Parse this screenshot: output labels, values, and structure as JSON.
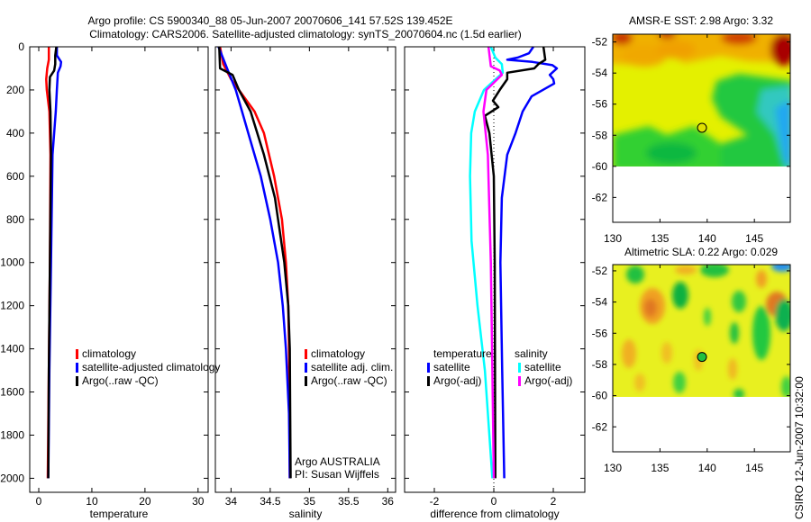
{
  "title": {
    "line1": "Argo profile: CS 5900340_88 05-Jun-2007 20070606_141 57.52S 139.452E",
    "line2": "Climatology: CARS2006. Satellite-adjusted climatology: synTS_20070604.nc (1.5d earlier)"
  },
  "footer_stamp": "CSIRO 12-Jun-2007 10:32:00",
  "colors": {
    "red": "#ff0000",
    "blue": "#0000ff",
    "black": "#000000",
    "cyan": "#00ffff",
    "magenta": "#ff00ff"
  },
  "chart_data": [
    {
      "type": "line",
      "xlabel": "temperature",
      "ylabel": "depth",
      "xlim": [
        -1.7,
        31.9
      ],
      "ylim": [
        0,
        2065
      ],
      "y_reversed": true,
      "xticks": [
        0,
        10,
        20,
        30
      ],
      "yticks": [
        0,
        200,
        400,
        600,
        800,
        1000,
        1200,
        1400,
        1600,
        1800,
        2000
      ],
      "legend": [
        {
          "label": "climatology",
          "color": "#ff0000"
        },
        {
          "label": "satellite-adjusted climatology",
          "color": "#0000ff"
        },
        {
          "label": "Argo(..raw -QC)",
          "color": "#000000"
        }
      ],
      "series": [
        {
          "name": "climatology",
          "color": "#ff0000",
          "depth": [
            0,
            60,
            100,
            150,
            200,
            300,
            500,
            1000,
            1500,
            2000
          ],
          "values": [
            1.9,
            1.9,
            1.6,
            1.4,
            1.5,
            2.0,
            2.2,
            2.1,
            1.9,
            1.7
          ]
        },
        {
          "name": "satellite-adjusted climatology",
          "color": "#0000ff",
          "depth": [
            0,
            40,
            70,
            90,
            120,
            200,
            300,
            500,
            1000,
            1500,
            2000
          ],
          "values": [
            3.4,
            3.4,
            4.2,
            4.1,
            3.6,
            3.4,
            3.2,
            2.6,
            2.3,
            2.0,
            1.8
          ]
        },
        {
          "name": "Argo(..raw -QC)",
          "color": "#000000",
          "depth": [
            0,
            40,
            80,
            110,
            140,
            200,
            300,
            500,
            1000,
            1500,
            2000
          ],
          "values": [
            3.3,
            3.1,
            3.1,
            2.9,
            2.1,
            2.0,
            2.2,
            2.3,
            2.1,
            1.9,
            1.8
          ]
        }
      ]
    },
    {
      "type": "line",
      "xlabel": "salinity",
      "xlim": [
        33.8,
        36.1
      ],
      "ylim": [
        0,
        2065
      ],
      "y_reversed": true,
      "xticks": [
        34,
        34.5,
        35,
        35.5,
        36
      ],
      "yticks": [
        0,
        200,
        400,
        600,
        800,
        1000,
        1200,
        1400,
        1600,
        1800,
        2000
      ],
      "legend": [
        {
          "label": "climatology",
          "color": "#ff0000"
        },
        {
          "label": "satellite adj. clim.",
          "color": "#0000ff"
        },
        {
          "label": "Argo(..raw -QC)",
          "color": "#000000"
        }
      ],
      "annotation": [
        "Argo AUSTRALIA",
        "PI: Susan Wijffels"
      ],
      "series": [
        {
          "name": "climatology",
          "color": "#ff0000",
          "depth": [
            0,
            80,
            150,
            200,
            300,
            400,
            600,
            800,
            1000,
            1200,
            1400,
            2000
          ],
          "values": [
            33.86,
            33.9,
            34.0,
            34.1,
            34.3,
            34.42,
            34.55,
            34.65,
            34.7,
            34.73,
            34.74,
            34.75
          ]
        },
        {
          "name": "satellite adj. clim.",
          "color": "#0000ff",
          "depth": [
            0,
            100,
            200,
            300,
            400,
            600,
            800,
            1000,
            1200,
            1400,
            1700,
            2000
          ],
          "values": [
            33.84,
            33.95,
            34.06,
            34.14,
            34.22,
            34.38,
            34.5,
            34.6,
            34.66,
            34.7,
            34.74,
            34.75
          ]
        },
        {
          "name": "Argo(..raw -QC)",
          "color": "#000000",
          "depth": [
            0,
            100,
            130,
            200,
            300,
            500,
            700,
            1000,
            1200,
            1400,
            2000
          ],
          "values": [
            33.85,
            33.86,
            34.02,
            34.1,
            34.25,
            34.42,
            34.56,
            34.68,
            34.73,
            34.75,
            34.76
          ]
        }
      ]
    },
    {
      "type": "line",
      "xlabel": "difference from climatology",
      "xlim": [
        -3.0,
        3.06
      ],
      "ylim": [
        0,
        2065
      ],
      "y_reversed": true,
      "xticks": [
        -2,
        0,
        2
      ],
      "yticks": [
        0,
        200,
        400,
        600,
        800,
        1000,
        1200,
        1400,
        1600,
        1800,
        2000
      ],
      "legend_groups": [
        {
          "heading": "temperature",
          "items": [
            {
              "label": "satellite",
              "color": "#0000ff"
            },
            {
              "label": "Argo(-adj)",
              "color": "#000000"
            }
          ]
        },
        {
          "heading": "salinity",
          "items": [
            {
              "label": "satellite",
              "color": "#00ffff"
            },
            {
              "label": "Argo(-adj)",
              "color": "#ff00ff"
            }
          ]
        }
      ],
      "zero_line": true,
      "series": [
        {
          "name": "temperature satellite",
          "color": "#0000ff",
          "depth": [
            0,
            30,
            50,
            60,
            70,
            85,
            100,
            130,
            150,
            170,
            230,
            300,
            400,
            500,
            700,
            1000,
            1500,
            2000
          ],
          "values": [
            1.33,
            1.18,
            0.8,
            0.45,
            1.3,
            1.97,
            2.12,
            1.88,
            2.0,
            2.03,
            1.27,
            0.97,
            0.73,
            0.45,
            0.27,
            0.22,
            0.28,
            0.35
          ]
        },
        {
          "name": "temperature Argo(-adj)",
          "color": "#000000",
          "depth": [
            0,
            60,
            80,
            100,
            120,
            150,
            200,
            250,
            280,
            320,
            400,
            600,
            1000,
            2000
          ],
          "values": [
            1.67,
            1.73,
            1.5,
            1.36,
            0.45,
            0.45,
            0.2,
            -0.03,
            0.15,
            -0.3,
            -0.15,
            0.0,
            0.03,
            0.05
          ]
        },
        {
          "name": "salinity satellite",
          "color": "#00ffff",
          "depth": [
            0,
            50,
            80,
            120,
            200,
            300,
            400,
            600,
            900,
            1200,
            1500,
            2000
          ],
          "values": [
            -0.1,
            0.05,
            0.27,
            0.3,
            -0.33,
            -0.64,
            -0.76,
            -0.8,
            -0.75,
            -0.55,
            -0.3,
            -0.05
          ]
        },
        {
          "name": "salinity Argo(-adj)",
          "color": "#ff00ff",
          "depth": [
            0,
            90,
            110,
            130,
            200,
            300,
            500,
            1000,
            1500,
            2000
          ],
          "values": [
            -0.18,
            -0.1,
            0.2,
            0.27,
            -0.25,
            -0.35,
            -0.2,
            -0.1,
            -0.05,
            0.0
          ]
        }
      ]
    },
    {
      "type": "heatmap",
      "title": "AMSR-E SST: 2.98 Argo: 3.32",
      "xlim": [
        130,
        148.8
      ],
      "ylim": [
        -63.6,
        -51.5
      ],
      "xticks": [
        130,
        135,
        140,
        145
      ],
      "yticks": [
        -52,
        -54,
        -56,
        -58,
        -60,
        -62
      ],
      "data_lat_min": -60.1,
      "marker": {
        "lon": 139.452,
        "lat": -57.52,
        "color": "#e0e000"
      }
    },
    {
      "type": "heatmap",
      "title": "Altimetric SLA: 0.22 Argo: 0.029",
      "xlim": [
        130,
        148.8
      ],
      "ylim": [
        -63.6,
        -51.6
      ],
      "xticks": [
        130,
        135,
        140,
        145
      ],
      "yticks": [
        -52,
        -54,
        -56,
        -58,
        -60,
        -62
      ],
      "data_lat_min": -60.1,
      "marker": {
        "lon": 139.452,
        "lat": -57.52,
        "color": "#20c040"
      }
    }
  ]
}
